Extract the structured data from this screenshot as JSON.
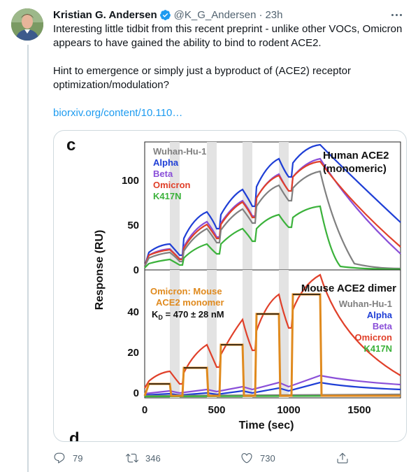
{
  "tweet": {
    "author_name": "Kristian G. Andersen",
    "handle": "@K_G_Andersen",
    "separator": "·",
    "time": "23h",
    "paragraph1": "Interesting little tidbit from this recent preprint - unlike other VOCs, Omicron appears to have gained the ability to bind to rodent ACE2.",
    "paragraph2": "Hint to emergence or simply just a byproduct of (ACE2) receptor optimization/modulation?",
    "link_text": "biorxiv.org/content/10.110…"
  },
  "figure": {
    "panel_label_c": "c",
    "panel_label_d": "d",
    "y_label": "Response (RU)",
    "x_label": "Time (sec)",
    "top_title_line1": "Human ACE2",
    "top_title_line2": "(monomeric)",
    "bottom_title": "Mouse ACE2 dimer",
    "omicron_mouse_line1": "Omicron: Mouse",
    "omicron_mouse_line2": "ACE2 monomer",
    "kd_prefix": "K",
    "kd_sub": "D",
    "kd_value": " = 470 ± 28 nM",
    "top_legend": [
      "Wuhan-Hu-1",
      "Alpha",
      "Beta",
      "Omicron",
      "K417N"
    ],
    "bottom_legend": [
      "Wuhan-Hu-1",
      "Alpha",
      "Beta",
      "Omicron",
      "K417N"
    ],
    "top_y_ticks": [
      "100",
      "50",
      "0"
    ],
    "bottom_y_ticks": [
      "40",
      "20",
      "0"
    ],
    "x_ticks": [
      "0",
      "500",
      "1000",
      "1500"
    ]
  },
  "colors": {
    "wuhan": "#808080",
    "alpha": "#1f3fd6",
    "beta": "#8a4fd8",
    "omicron": "#e0402a",
    "k417n": "#3bb23b",
    "omicron_mouse": "#e08a1e",
    "link": "#1d9bf0",
    "verified": "#1d9bf0"
  },
  "icons": [
    "verified-badge-icon",
    "more-options-icon",
    "reply-icon",
    "retweet-icon",
    "like-icon",
    "share-icon"
  ],
  "actions": {
    "replies": "79",
    "retweets": "346",
    "likes": "730"
  }
}
